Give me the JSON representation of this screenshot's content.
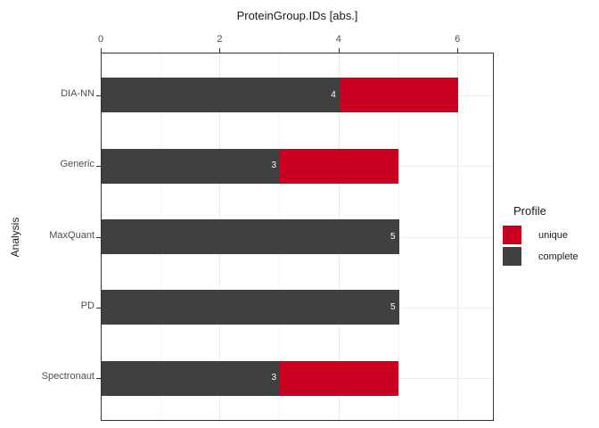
{
  "title": "ProteinGroup.IDs [abs.]",
  "chart_data": {
    "type": "bar",
    "orientation": "horizontal",
    "stacked": true,
    "title": "ProteinGroup.IDs [abs.]",
    "xlabel": "ProteinGroup.IDs [abs.]",
    "ylabel": "Analysis",
    "categories": [
      "DIA-NN",
      "Generic",
      "MaxQuant",
      "PD",
      "Spectronaut"
    ],
    "series": [
      {
        "name": "complete",
        "color": "#404040",
        "values": [
          4,
          3,
          5,
          5,
          3
        ]
      },
      {
        "name": "unique",
        "color": "#ca0020",
        "values": [
          2,
          2,
          0,
          0,
          2
        ]
      }
    ],
    "totals": [
      6,
      5,
      5,
      5,
      5
    ],
    "bar_labels": [
      "4",
      "3",
      "5",
      "5",
      "3"
    ],
    "x_ticks": [
      0,
      2,
      4,
      6
    ],
    "x_minor_gridlines": [
      1,
      3,
      5
    ],
    "xlim": [
      0,
      6.6
    ],
    "axis_position": "top",
    "grid": true,
    "legend": {
      "title": "Profile",
      "position": "right",
      "entries": [
        {
          "label": "unique",
          "color": "#ca0020"
        },
        {
          "label": "complete",
          "color": "#404040"
        }
      ]
    }
  }
}
